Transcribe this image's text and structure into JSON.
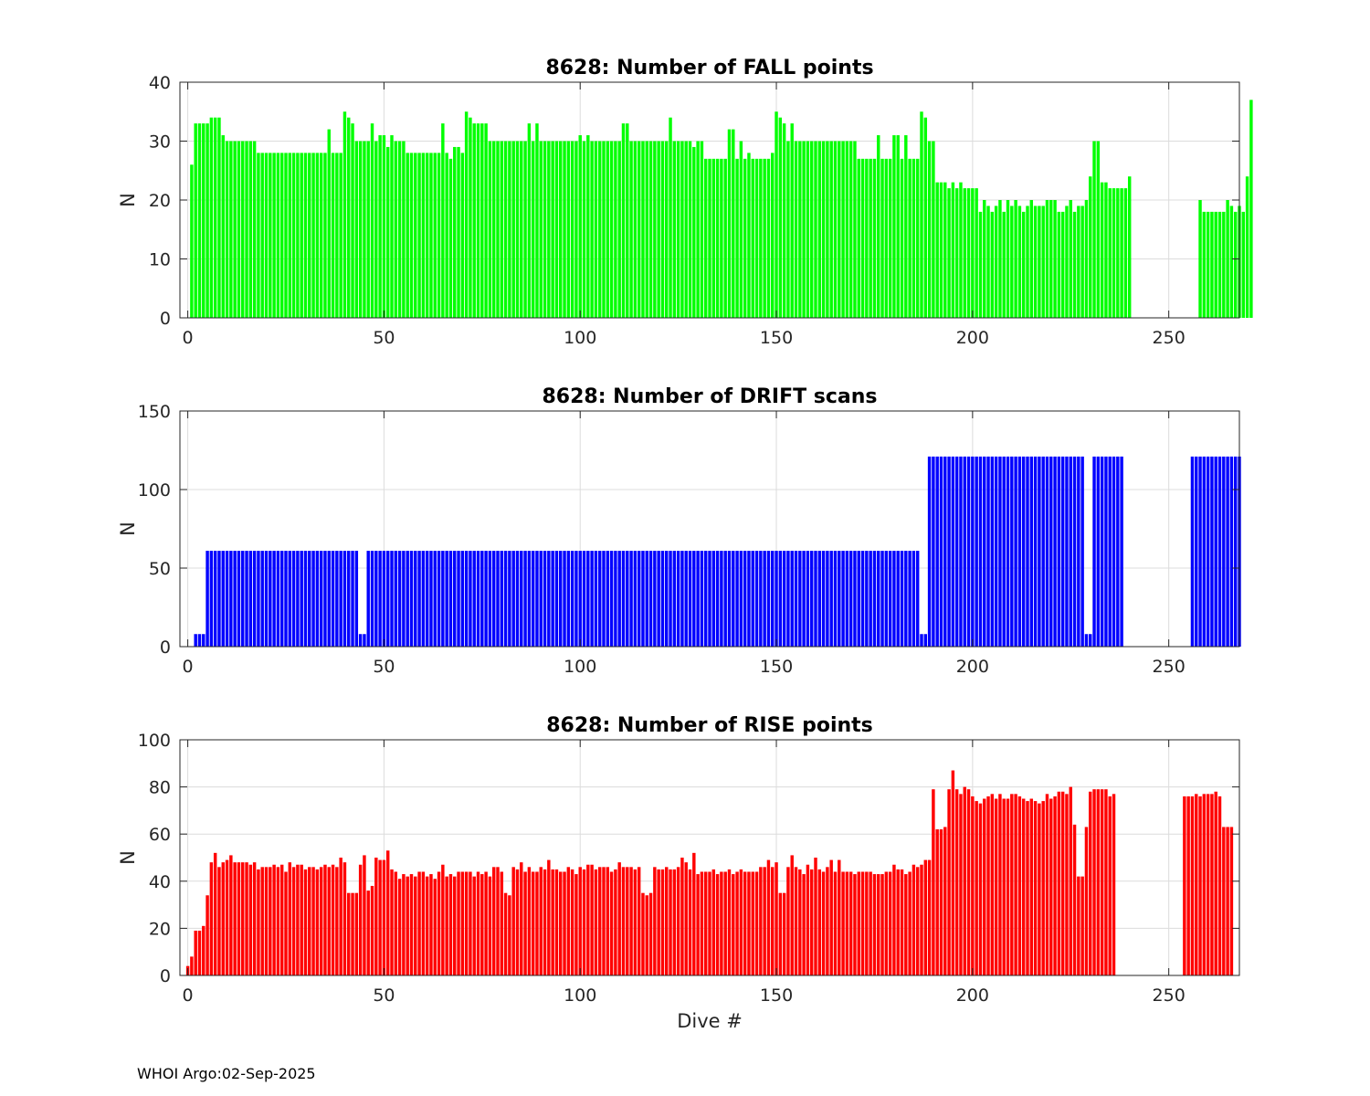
{
  "chart_data": [
    {
      "type": "bar",
      "title": "8628: Number of FALL points",
      "xlabel": "",
      "ylabel": "N",
      "xlim": [
        -2,
        268
      ],
      "ylim": [
        0,
        40
      ],
      "xticks": [
        0,
        50,
        100,
        150,
        200,
        250
      ],
      "yticks": [
        0,
        10,
        20,
        30,
        40
      ],
      "grid": true,
      "color": "#00ff00",
      "x_start": 1,
      "values": [
        26,
        33,
        33,
        33,
        33,
        34,
        34,
        34,
        31,
        30,
        30,
        30,
        30,
        30,
        30,
        30,
        30,
        28,
        28,
        28,
        28,
        28,
        28,
        28,
        28,
        28,
        28,
        28,
        28,
        28,
        28,
        28,
        28,
        28,
        28,
        32,
        28,
        28,
        28,
        35,
        34,
        33,
        30,
        30,
        30,
        30,
        33,
        30,
        31,
        31,
        29,
        31,
        30,
        30,
        30,
        28,
        28,
        28,
        28,
        28,
        28,
        28,
        28,
        28,
        33,
        28,
        27,
        29,
        29,
        28,
        35,
        34,
        33,
        33,
        33,
        33,
        30,
        30,
        30,
        30,
        30,
        30,
        30,
        30,
        30,
        30,
        33,
        30,
        33,
        30,
        30,
        30,
        30,
        30,
        30,
        30,
        30,
        30,
        30,
        31,
        30,
        31,
        30,
        30,
        30,
        30,
        30,
        30,
        30,
        30,
        33,
        33,
        30,
        30,
        30,
        30,
        30,
        30,
        30,
        30,
        30,
        30,
        34,
        30,
        30,
        30,
        30,
        30,
        29,
        30,
        30,
        27,
        27,
        27,
        27,
        27,
        27,
        32,
        32,
        27,
        30,
        27,
        28,
        27,
        27,
        27,
        27,
        27,
        28,
        35,
        34,
        33,
        30,
        33,
        30,
        30,
        30,
        30,
        30,
        30,
        30,
        30,
        30,
        30,
        30,
        30,
        30,
        30,
        30,
        30,
        27,
        27,
        27,
        27,
        27,
        31,
        27,
        27,
        27,
        31,
        31,
        27,
        31,
        27,
        27,
        27,
        35,
        34,
        30,
        30,
        23,
        23,
        23,
        22,
        23,
        22,
        23,
        22,
        22,
        22,
        22,
        18,
        20,
        19,
        18,
        19,
        20,
        18,
        20,
        19,
        20,
        19,
        18,
        19,
        20,
        19,
        19,
        19,
        20,
        20,
        20,
        18,
        18,
        19,
        20,
        18,
        19,
        19,
        20,
        24,
        30,
        30,
        23,
        23,
        22,
        22,
        22,
        22,
        22,
        24,
        null,
        null,
        null,
        null,
        null,
        null,
        null,
        null,
        null,
        null,
        null,
        null,
        null,
        null,
        null,
        null,
        null,
        20,
        18,
        18,
        18,
        18,
        18,
        18,
        20,
        19,
        18,
        19,
        18,
        24,
        37
      ]
    },
    {
      "type": "bar",
      "title": "8628: Number of DRIFT scans",
      "xlabel": "",
      "ylabel": "N",
      "xlim": [
        -2,
        268
      ],
      "ylim": [
        0,
        150
      ],
      "xticks": [
        0,
        50,
        100,
        150,
        200,
        250
      ],
      "yticks": [
        0,
        50,
        100,
        150
      ],
      "grid": true,
      "color": "#0000ff",
      "x_start": 1,
      "values": [
        null,
        8,
        8,
        8,
        61,
        61,
        61,
        61,
        61,
        61,
        61,
        61,
        61,
        61,
        61,
        61,
        61,
        61,
        61,
        61,
        61,
        61,
        61,
        61,
        61,
        61,
        61,
        61,
        61,
        61,
        61,
        61,
        61,
        61,
        61,
        61,
        61,
        61,
        61,
        61,
        61,
        61,
        61,
        8,
        8,
        61,
        61,
        61,
        61,
        61,
        61,
        61,
        61,
        61,
        61,
        61,
        61,
        61,
        61,
        61,
        61,
        61,
        61,
        61,
        61,
        61,
        61,
        61,
        61,
        61,
        61,
        61,
        61,
        61,
        61,
        61,
        61,
        61,
        61,
        61,
        61,
        61,
        61,
        61,
        61,
        61,
        61,
        61,
        61,
        61,
        61,
        61,
        61,
        61,
        61,
        61,
        61,
        61,
        61,
        61,
        61,
        61,
        61,
        61,
        61,
        61,
        61,
        61,
        61,
        61,
        61,
        61,
        61,
        61,
        61,
        61,
        61,
        61,
        61,
        61,
        61,
        61,
        61,
        61,
        61,
        61,
        61,
        61,
        61,
        61,
        61,
        61,
        61,
        61,
        61,
        61,
        61,
        61,
        61,
        61,
        61,
        61,
        61,
        61,
        61,
        61,
        61,
        61,
        61,
        61,
        61,
        61,
        61,
        61,
        61,
        61,
        61,
        61,
        61,
        61,
        61,
        61,
        61,
        61,
        61,
        61,
        61,
        61,
        61,
        61,
        61,
        61,
        61,
        61,
        61,
        61,
        61,
        61,
        61,
        61,
        61,
        61,
        61,
        61,
        61,
        61,
        8,
        8,
        121,
        121,
        121,
        121,
        121,
        121,
        121,
        121,
        121,
        121,
        121,
        121,
        121,
        121,
        121,
        121,
        121,
        121,
        121,
        121,
        121,
        121,
        121,
        121,
        121,
        121,
        121,
        121,
        121,
        121,
        121,
        121,
        121,
        121,
        121,
        121,
        121,
        121,
        121,
        121,
        8,
        8,
        121,
        121,
        121,
        121,
        121,
        121,
        121,
        121,
        null,
        null,
        null,
        null,
        null,
        null,
        null,
        null,
        null,
        null,
        null,
        null,
        null,
        null,
        null,
        null,
        null,
        121,
        121,
        121,
        121,
        121,
        121,
        121,
        121,
        121,
        121,
        121,
        121,
        121
      ]
    },
    {
      "type": "bar",
      "title": "8628: Number of RISE points",
      "xlabel": "Dive #",
      "ylabel": "N",
      "xlim": [
        -2,
        268
      ],
      "ylim": [
        0,
        100
      ],
      "xticks": [
        0,
        50,
        100,
        150,
        200,
        250
      ],
      "yticks": [
        0,
        20,
        40,
        60,
        80,
        100
      ],
      "grid": true,
      "color": "#ff0000",
      "x_start": 0,
      "values": [
        4,
        8,
        19,
        19,
        21,
        34,
        48,
        52,
        46,
        48,
        49,
        51,
        48,
        48,
        48,
        48,
        47,
        48,
        45,
        46,
        46,
        46,
        47,
        46,
        47,
        44,
        48,
        46,
        47,
        47,
        45,
        46,
        46,
        45,
        46,
        47,
        46,
        47,
        46,
        50,
        48,
        35,
        35,
        35,
        47,
        51,
        36,
        38,
        50,
        49,
        49,
        53,
        45,
        44,
        41,
        43,
        42,
        43,
        42,
        44,
        44,
        42,
        43,
        41,
        44,
        47,
        42,
        43,
        42,
        44,
        44,
        44,
        44,
        42,
        44,
        43,
        44,
        42,
        46,
        46,
        44,
        35,
        34,
        46,
        45,
        48,
        44,
        46,
        44,
        44,
        46,
        45,
        49,
        45,
        45,
        44,
        44,
        46,
        45,
        43,
        46,
        45,
        47,
        47,
        45,
        46,
        46,
        46,
        44,
        45,
        48,
        46,
        46,
        46,
        45,
        46,
        35,
        34,
        35,
        46,
        45,
        45,
        46,
        45,
        45,
        46,
        50,
        48,
        45,
        52,
        43,
        44,
        44,
        44,
        45,
        43,
        44,
        44,
        45,
        43,
        44,
        45,
        44,
        44,
        44,
        44,
        46,
        46,
        49,
        46,
        48,
        35,
        35,
        46,
        51,
        46,
        45,
        43,
        47,
        45,
        50,
        45,
        44,
        46,
        49,
        44,
        49,
        44,
        44,
        44,
        43,
        44,
        44,
        44,
        44,
        43,
        43,
        43,
        44,
        44,
        47,
        45,
        45,
        43,
        44,
        47,
        46,
        47,
        49,
        49,
        79,
        62,
        62,
        63,
        79,
        87,
        79,
        77,
        80,
        79,
        76,
        74,
        73,
        75,
        76,
        77,
        75,
        77,
        75,
        75,
        77,
        77,
        76,
        75,
        74,
        75,
        74,
        73,
        74,
        77,
        75,
        76,
        78,
        78,
        77,
        80,
        64,
        42,
        42,
        63,
        78,
        79,
        79,
        79,
        79,
        76,
        77,
        null,
        null,
        null,
        null,
        null,
        null,
        null,
        null,
        null,
        null,
        null,
        null,
        null,
        null,
        null,
        null,
        null,
        76,
        76,
        76,
        77,
        76,
        77,
        77,
        77,
        78,
        76,
        63,
        63,
        63
      ]
    }
  ],
  "footer": "WHOI Argo:02-Sep-2025"
}
